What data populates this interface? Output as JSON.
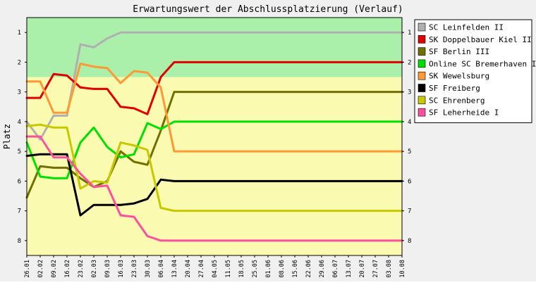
{
  "chart_data": {
    "type": "line",
    "title": "Erwartungswert der Abschlussplatzierung (Verlauf)",
    "ylabel": "Platz",
    "xlabel": "",
    "ylim": [
      0.5,
      8.5
    ],
    "y_inverted": true,
    "yticks": [
      1,
      2,
      3,
      4,
      5,
      6,
      7,
      8
    ],
    "grid": false,
    "legend_position": "right",
    "zones": [
      {
        "from": 0.5,
        "to": 2.5,
        "color": "#aaf0aa"
      },
      {
        "from": 2.5,
        "to": 8.5,
        "color": "#fafab0"
      }
    ],
    "x_labels": [
      "26.01",
      "02.02",
      "09.02",
      "16.02",
      "23.02",
      "02.03",
      "09.03",
      "16.03",
      "23.03",
      "30.03",
      "06.04",
      "13.04",
      "20.04",
      "27.04",
      "04.05",
      "11.05",
      "18.05",
      "25.05",
      "01.06",
      "08.06",
      "15.06",
      "22.06",
      "29.06",
      "06.07",
      "13.07",
      "20.07",
      "27.07",
      "03.08",
      "10.08"
    ],
    "series": [
      {
        "name": "SC Leinfelden II",
        "color": "#b0b0b0",
        "values": [
          4.0,
          4.6,
          3.8,
          3.8,
          1.4,
          1.5,
          1.2,
          1.0,
          1.0,
          1.0,
          1.0,
          1.0,
          1.0,
          1.0,
          1.0,
          1.0,
          1.0,
          1.0,
          1.0,
          1.0,
          1.0,
          1.0,
          1.0,
          1.0,
          1.0,
          1.0,
          1.0,
          1.0,
          1.0
        ]
      },
      {
        "name": "SK Doppelbauer Kiel II",
        "color": "#e00000",
        "values": [
          3.2,
          3.2,
          2.4,
          2.45,
          2.85,
          2.9,
          2.9,
          3.5,
          3.55,
          3.75,
          2.5,
          2.0,
          2.0,
          2.0,
          2.0,
          2.0,
          2.0,
          2.0,
          2.0,
          2.0,
          2.0,
          2.0,
          2.0,
          2.0,
          2.0,
          2.0,
          2.0,
          2.0,
          2.0
        ]
      },
      {
        "name": "SF Berlin III",
        "color": "#707000",
        "values": [
          6.55,
          5.5,
          5.55,
          5.55,
          5.9,
          6.2,
          6.0,
          5.0,
          5.35,
          5.45,
          4.3,
          3.0,
          3.0,
          3.0,
          3.0,
          3.0,
          3.0,
          3.0,
          3.0,
          3.0,
          3.0,
          3.0,
          3.0,
          3.0,
          3.0,
          3.0,
          3.0,
          3.0,
          3.0
        ]
      },
      {
        "name": "Online SC Bremerhaven II",
        "color": "#00e000",
        "values": [
          4.7,
          5.85,
          5.9,
          5.9,
          4.7,
          4.2,
          4.85,
          5.2,
          5.1,
          4.05,
          4.25,
          4.0,
          4.0,
          4.0,
          4.0,
          4.0,
          4.0,
          4.0,
          4.0,
          4.0,
          4.0,
          4.0,
          4.0,
          4.0,
          4.0,
          4.0,
          4.0,
          4.0,
          4.0
        ]
      },
      {
        "name": "SK Wewelsburg",
        "color": "#ff9933",
        "values": [
          2.65,
          2.65,
          3.7,
          3.7,
          2.05,
          2.15,
          2.2,
          2.7,
          2.3,
          2.35,
          2.85,
          5.0,
          5.0,
          5.0,
          5.0,
          5.0,
          5.0,
          5.0,
          5.0,
          5.0,
          5.0,
          5.0,
          5.0,
          5.0,
          5.0,
          5.0,
          5.0,
          5.0,
          5.0
        ]
      },
      {
        "name": "SF Freiberg",
        "color": "#000000",
        "values": [
          5.15,
          5.1,
          5.1,
          5.1,
          7.15,
          6.8,
          6.8,
          6.8,
          6.75,
          6.6,
          5.95,
          6.0,
          6.0,
          6.0,
          6.0,
          6.0,
          6.0,
          6.0,
          6.0,
          6.0,
          6.0,
          6.0,
          6.0,
          6.0,
          6.0,
          6.0,
          6.0,
          6.0,
          6.0
        ]
      },
      {
        "name": "SC Ehrenberg",
        "color": "#c8c800",
        "values": [
          4.15,
          4.1,
          4.2,
          4.2,
          6.25,
          6.0,
          6.05,
          4.7,
          4.8,
          4.95,
          6.9,
          7.0,
          7.0,
          7.0,
          7.0,
          7.0,
          7.0,
          7.0,
          7.0,
          7.0,
          7.0,
          7.0,
          7.0,
          7.0,
          7.0,
          7.0,
          7.0,
          7.0,
          7.0
        ]
      },
      {
        "name": "SF Leherheide I",
        "color": "#ff4fa0",
        "values": [
          4.5,
          4.5,
          5.2,
          5.2,
          5.75,
          6.2,
          6.15,
          7.15,
          7.2,
          7.85,
          8.0,
          8.0,
          8.0,
          8.0,
          8.0,
          8.0,
          8.0,
          8.0,
          8.0,
          8.0,
          8.0,
          8.0,
          8.0,
          8.0,
          8.0,
          8.0,
          8.0,
          8.0,
          8.0
        ]
      }
    ]
  }
}
